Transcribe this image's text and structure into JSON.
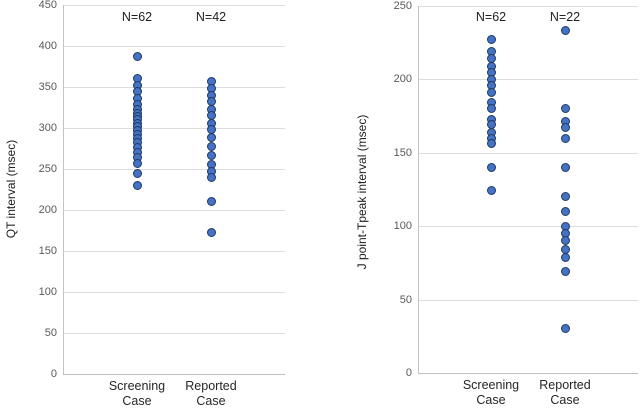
{
  "chart_data": [
    {
      "type": "scatter",
      "title": "",
      "ylabel": "QT interval (msec)",
      "xlabel": "",
      "ylim": [
        0,
        450
      ],
      "ytick_step": 50,
      "yticks": [
        450,
        400,
        350,
        300,
        250,
        200,
        150,
        100,
        50,
        0
      ],
      "grid": true,
      "legend": "none",
      "categories": [
        "Screening Case",
        "Reported Case"
      ],
      "annotations": [
        {
          "text": "N=62",
          "category": 0
        },
        {
          "text": "N=42",
          "category": 1
        }
      ],
      "series": [
        {
          "name": "Screening Case",
          "values": [
            387,
            360,
            352,
            344,
            336,
            329,
            323,
            318,
            314,
            310,
            306,
            302,
            297,
            292,
            287,
            282,
            276,
            270,
            264,
            257,
            245,
            230
          ]
        },
        {
          "name": "Reported Case",
          "values": [
            357,
            348,
            340,
            332,
            323,
            315,
            306,
            298,
            289,
            278,
            267,
            256,
            247,
            240,
            210,
            172
          ]
        }
      ],
      "marker_fill": "#4472C4",
      "marker_stroke": "#1F3864"
    },
    {
      "type": "scatter",
      "title": "",
      "ylabel": "J point-Tpeak interval (msec)",
      "xlabel": "",
      "ylim": [
        0,
        250
      ],
      "ytick_step": 50,
      "yticks": [
        250,
        200,
        150,
        100,
        50,
        0
      ],
      "grid": true,
      "legend": "none",
      "categories": [
        "Screening Case",
        "Reported Case"
      ],
      "annotations": [
        {
          "text": "N=62",
          "category": 0
        },
        {
          "text": "N=22",
          "category": 1
        }
      ],
      "series": [
        {
          "name": "Screening Case",
          "values": [
            227,
            219,
            214,
            209,
            205,
            200,
            196,
            191,
            184,
            180,
            173,
            169,
            164,
            160,
            156,
            140,
            124
          ]
        },
        {
          "name": "Reported Case",
          "values": [
            233,
            180,
            171,
            167,
            160,
            140,
            120,
            110,
            100,
            95,
            90,
            84,
            79,
            69,
            30
          ]
        }
      ],
      "marker_fill": "#4472C4",
      "marker_stroke": "#1F3864"
    }
  ]
}
